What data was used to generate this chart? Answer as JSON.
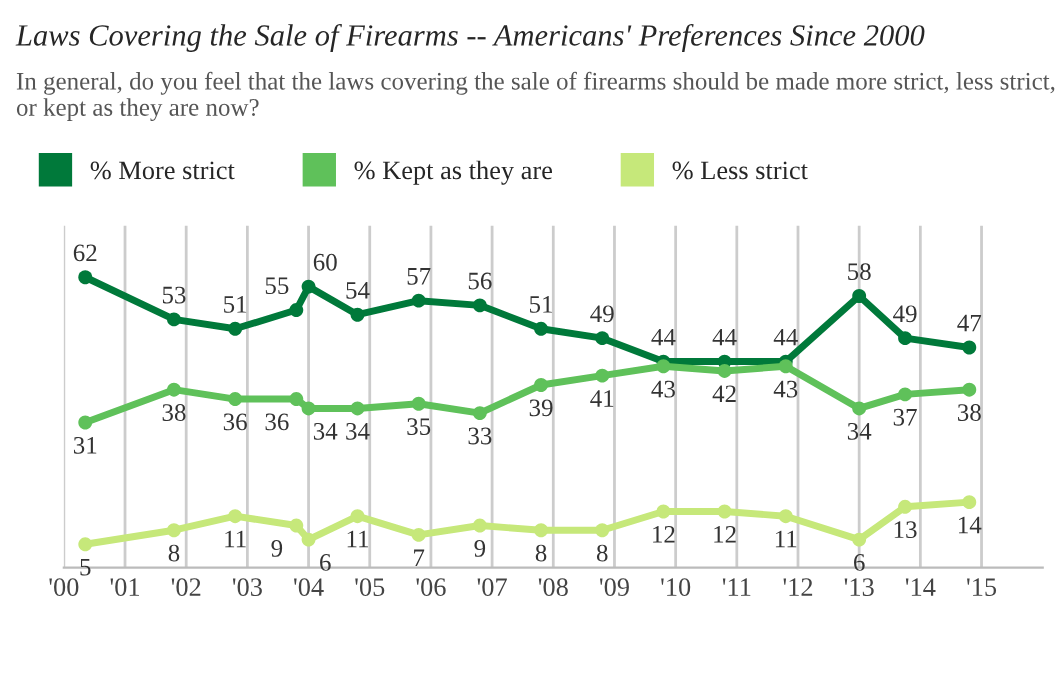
{
  "chart_data": {
    "type": "line",
    "title": "Laws Covering the Sale of Firearms -- Americans' Preferences Since 2000",
    "subtitle": "In general, do you feel that the laws covering the sale of firearms should be made more strict, less strict, or kept as they are now?",
    "x": [
      2000.35,
      2001.8,
      2002.8,
      2003.8,
      2004.0,
      2004.8,
      2005.8,
      2006.8,
      2007.8,
      2008.8,
      2009.8,
      2010.8,
      2011.8,
      2013.0,
      2013.75,
      2014.8
    ],
    "series": [
      {
        "name": "% More strict",
        "color": "#00793a",
        "values": [
          62,
          53,
          51,
          55,
          60,
          54,
          57,
          56,
          51,
          49,
          44,
          44,
          44,
          58,
          49,
          47
        ]
      },
      {
        "name": "% Kept as they are",
        "color": "#5fc15a",
        "values": [
          31,
          38,
          36,
          36,
          34,
          34,
          35,
          33,
          39,
          41,
          43,
          42,
          43,
          34,
          37,
          38
        ]
      },
      {
        "name": "% Less strict",
        "color": "#c6e87a",
        "values": [
          5,
          8,
          11,
          9,
          6,
          11,
          7,
          9,
          8,
          8,
          12,
          12,
          11,
          6,
          13,
          14
        ]
      }
    ],
    "xlim": [
      2000,
      2016
    ],
    "ylim": [
      0,
      73
    ],
    "xticks": [
      {
        "value": 2000,
        "label": "'00"
      },
      {
        "value": 2001,
        "label": "'01"
      },
      {
        "value": 2002,
        "label": "'02"
      },
      {
        "value": 2003,
        "label": "'03"
      },
      {
        "value": 2004,
        "label": "'04"
      },
      {
        "value": 2005,
        "label": "'05"
      },
      {
        "value": 2006,
        "label": "'06"
      },
      {
        "value": 2007,
        "label": "'07"
      },
      {
        "value": 2008,
        "label": "'08"
      },
      {
        "value": 2009,
        "label": "'09"
      },
      {
        "value": 2010,
        "label": "'10"
      },
      {
        "value": 2011,
        "label": "'11"
      },
      {
        "value": 2012,
        "label": "'12"
      },
      {
        "value": 2013,
        "label": "'13"
      },
      {
        "value": 2014,
        "label": "'14"
      },
      {
        "value": 2015,
        "label": "'15"
      }
    ],
    "tick_labels": "x",
    "grid": "x",
    "legend": "top left",
    "marker": "circle",
    "line_style": "solid",
    "data_labels": true
  }
}
